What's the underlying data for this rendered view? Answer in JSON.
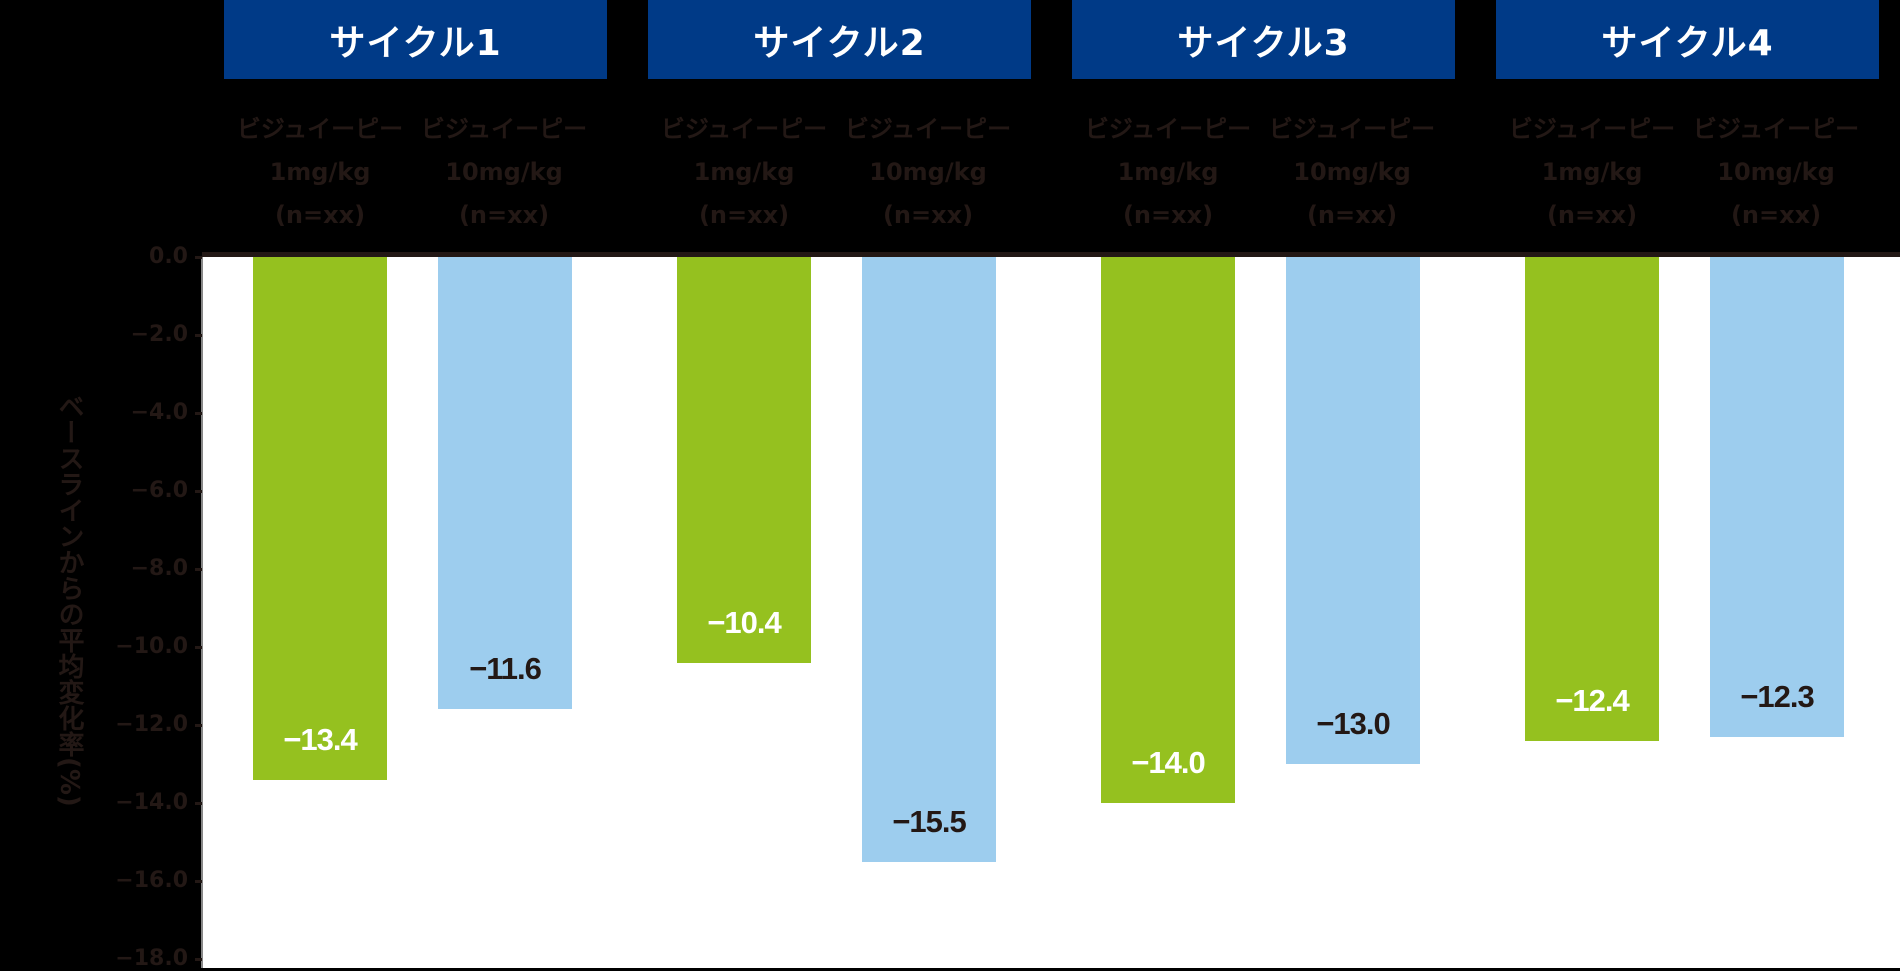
{
  "chart_data": {
    "type": "bar",
    "title": "",
    "categories": [
      "サイクル1",
      "サイクル2",
      "サイクル3",
      "サイクル4"
    ],
    "series": [
      {
        "name": "1mg/kg",
        "color": "#95c11f",
        "label_color": "#ffffff",
        "values": [
          -13.4,
          -10.4,
          -14.0,
          -12.4
        ]
      },
      {
        "name": "10mg/kg",
        "color": "#9dcdee",
        "label_color": "#231815",
        "values": [
          -11.6,
          -15.5,
          -13.0,
          -12.3
        ]
      }
    ],
    "value_labels": {
      "series0": [
        "−13.4",
        "−10.4",
        "−14.0",
        "−12.4"
      ],
      "series1": [
        "−11.6",
        "−15.5",
        "−13.0",
        "−12.3"
      ]
    },
    "xlabel": "",
    "ylabel": "",
    "ylim": [
      -18,
      0
    ],
    "yticks": [
      0,
      -2,
      -4,
      -6,
      -8,
      -10,
      -12,
      -14,
      -16,
      -18
    ],
    "ytick_labels": [
      "0.0",
      "−2.0",
      "−4.0",
      "−6.0",
      "−8.0",
      "−10.0",
      "−12.0",
      "−14.0",
      "−16.0",
      "−18.0"
    ],
    "grid": false,
    "legend_position": "top (per-cycle sub-headers)"
  },
  "colors": {
    "header_bg": "#003a87",
    "header_text": "#ffffff",
    "background": "#000000",
    "plot_bg": "#ffffff",
    "dim_text": "#231815"
  },
  "headers": [
    {
      "label": "サイクル1"
    },
    {
      "label": "サイクル2"
    },
    {
      "label": "サイクル3"
    },
    {
      "label": "サイクル4"
    }
  ],
  "sub_headers": [
    {
      "line1": "ビジュイーピー",
      "line2": "1mg/kg",
      "line3": "(n=xx)"
    },
    {
      "line1": "ビジュイーピー",
      "line2": "10mg/kg",
      "line3": "(n=xx)"
    }
  ],
  "y_axis_title": "ベースラインからの平均変化率(%)"
}
